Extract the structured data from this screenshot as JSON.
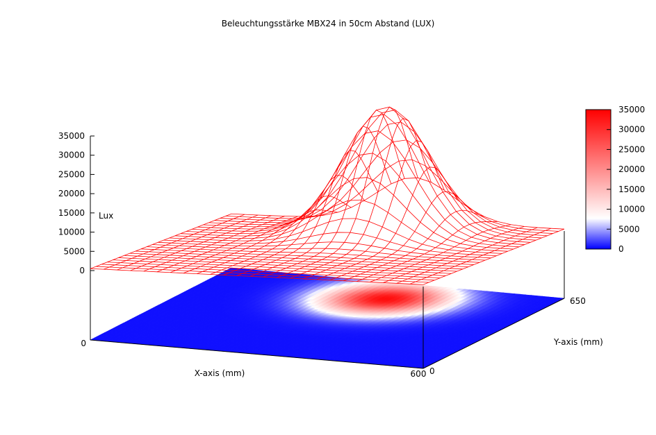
{
  "chart_data": {
    "type": "surface3d",
    "title": "Beleuchtungsstärke MBX24 in 50cm Abstand (LUX)",
    "xlabel": "X-axis (mm)",
    "ylabel": "Y-axis (mm)",
    "zlabel": "Lux",
    "xlim": [
      0,
      600
    ],
    "ylim": [
      0,
      650
    ],
    "zlim": [
      0,
      35000
    ],
    "x_ticks": [
      "0",
      "600"
    ],
    "y_ticks": [
      "0",
      "650"
    ],
    "z_ticks": [
      "0",
      "5000",
      "10000",
      "15000",
      "20000",
      "25000",
      "30000",
      "35000"
    ],
    "colorbar": {
      "ticks": [
        "0",
        "5000",
        "10000",
        "15000",
        "20000",
        "25000",
        "30000",
        "35000"
      ],
      "range": [
        0,
        35000
      ],
      "colors": [
        "#0000ff",
        "#ffffff",
        "#ff0000"
      ]
    },
    "grid": {
      "nx": 25,
      "ny": 25
    },
    "peak": {
      "x": 330,
      "y": 520,
      "value": 33500,
      "sigma_x": 70,
      "sigma_y": 90
    },
    "baseline": 500,
    "surface_color": "#ff0000",
    "box_color": "#000000",
    "floor_map_color": "#0000ff"
  }
}
